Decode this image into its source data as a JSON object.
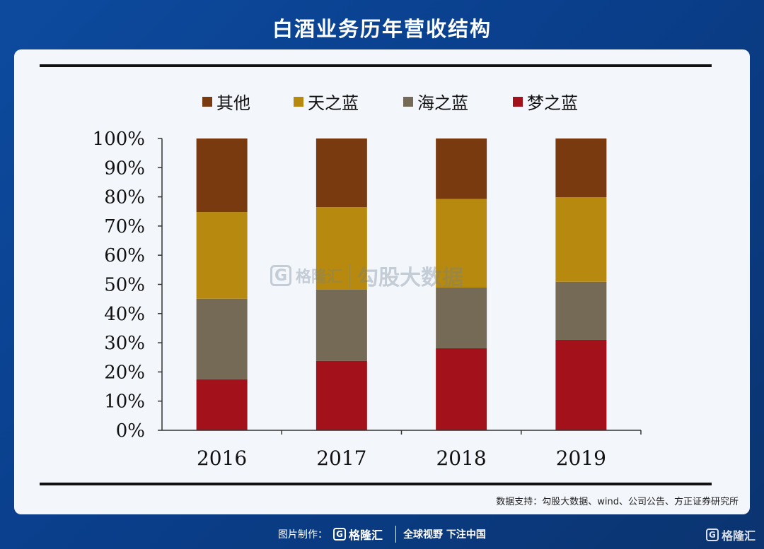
{
  "header": {
    "title": "白酒业务历年营收结构"
  },
  "chart_data": {
    "type": "bar",
    "stacked": true,
    "categories": [
      "2016",
      "2017",
      "2018",
      "2019"
    ],
    "series": [
      {
        "name": "梦之蓝",
        "color": "#a3121a",
        "values": [
          17.5,
          23.8,
          28.1,
          31.0
        ]
      },
      {
        "name": "海之蓝",
        "color": "#746a55",
        "values": [
          27.6,
          24.4,
          20.8,
          19.9
        ]
      },
      {
        "name": "天之蓝",
        "color": "#b78a0f",
        "values": [
          29.7,
          28.3,
          30.4,
          29.0
        ]
      },
      {
        "name": "其他",
        "color": "#7a3a10",
        "values": [
          25.2,
          23.5,
          20.7,
          20.1
        ]
      }
    ],
    "legend_order": [
      "其他",
      "天之蓝",
      "海之蓝",
      "梦之蓝"
    ],
    "legend_position": "top",
    "ylim": [
      0,
      100
    ],
    "yticks": [
      "0%",
      "10%",
      "20%",
      "30%",
      "40%",
      "50%",
      "60%",
      "70%",
      "80%",
      "90%",
      "100%"
    ],
    "grid": false
  },
  "source": {
    "text": "数据支持：勾股大数据、wind、公司公告、方正证券研究所"
  },
  "watermark": {
    "logo_letter": "G",
    "brand": "格隆汇",
    "text": "勾股大数据"
  },
  "footer": {
    "made_by": "图片制作：",
    "brand_letter": "G",
    "brand": "格隆汇",
    "slogan": "全球视野 下注中国"
  },
  "corner": {
    "letter": "G",
    "brand": "格隆汇"
  }
}
